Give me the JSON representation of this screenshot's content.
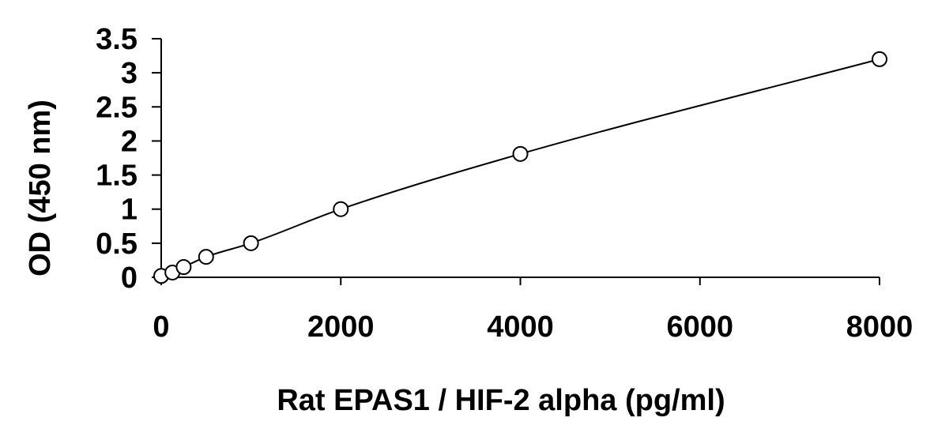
{
  "chart_data": {
    "type": "scatter",
    "title": "",
    "xlabel": "Rat EPAS1 / HIF-2 alpha (pg/ml)",
    "ylabel": "OD (450 nm)",
    "xlim": [
      0,
      8000
    ],
    "ylim": [
      0,
      3.5
    ],
    "xticks": [
      0,
      2000,
      4000,
      6000,
      8000
    ],
    "xtick_labels": [
      "0",
      "2000",
      "4000",
      "6000",
      "8000"
    ],
    "yticks": [
      0,
      0.5,
      1,
      1.5,
      2,
      2.5,
      3,
      3.5
    ],
    "ytick_labels": [
      "0",
      "0.5",
      "1",
      "1.5",
      "2",
      "2.5",
      "3",
      "3.5"
    ],
    "grid": false,
    "legend": "none",
    "series": [
      {
        "marker": "open-circle",
        "line": "smooth-fit",
        "color": "#000000",
        "x": [
          0,
          125,
          250,
          500,
          1000,
          2000,
          4000,
          8000
        ],
        "y": [
          0.02,
          0.07,
          0.15,
          0.3,
          0.5,
          1.0,
          1.81,
          3.2
        ]
      }
    ]
  }
}
